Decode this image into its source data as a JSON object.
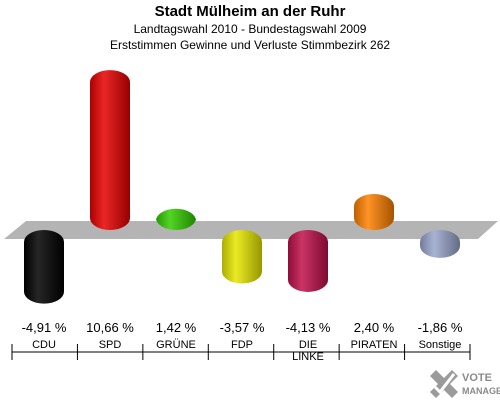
{
  "title": "Stadt Mülheim an der Ruhr",
  "subtitle1": "Landtagswahl 2010 - Bundestagswahl 2009",
  "subtitle2": "Erststimmen Gewinne und Verluste Stimmbezirk 262",
  "logo_text": "VOTE MANAGER",
  "colors": {
    "baseline": "#b4b4b4",
    "grid_shadow": "#e6e6e6"
  },
  "chart_data": {
    "type": "bar",
    "title": "Stadt Mülheim an der Ruhr",
    "categories": [
      "CDU",
      "SPD",
      "GRÜNE",
      "FDP",
      "DIE LINKE",
      "PIRATEN",
      "Sonstige"
    ],
    "category_lines": [
      [
        "CDU"
      ],
      [
        "SPD"
      ],
      [
        "GRÜNE"
      ],
      [
        "FDP"
      ],
      [
        "DIE",
        "LINKE"
      ],
      [
        "PIRATEN"
      ],
      [
        "Sonstige"
      ]
    ],
    "values": [
      -4.91,
      10.66,
      1.42,
      -3.57,
      -4.13,
      2.4,
      -1.86
    ],
    "value_labels": [
      "-4,91 %",
      "10,66 %",
      "1,42 %",
      "-3,57 %",
      "-4,13 %",
      "2,40 %",
      "-1,86 %"
    ],
    "colors": [
      "#000000",
      "#e60000",
      "#33cc00",
      "#e6e600",
      "#c0104a",
      "#ff8000",
      "#99a6cc"
    ],
    "xlabel": "",
    "ylabel": "",
    "grid": false
  }
}
